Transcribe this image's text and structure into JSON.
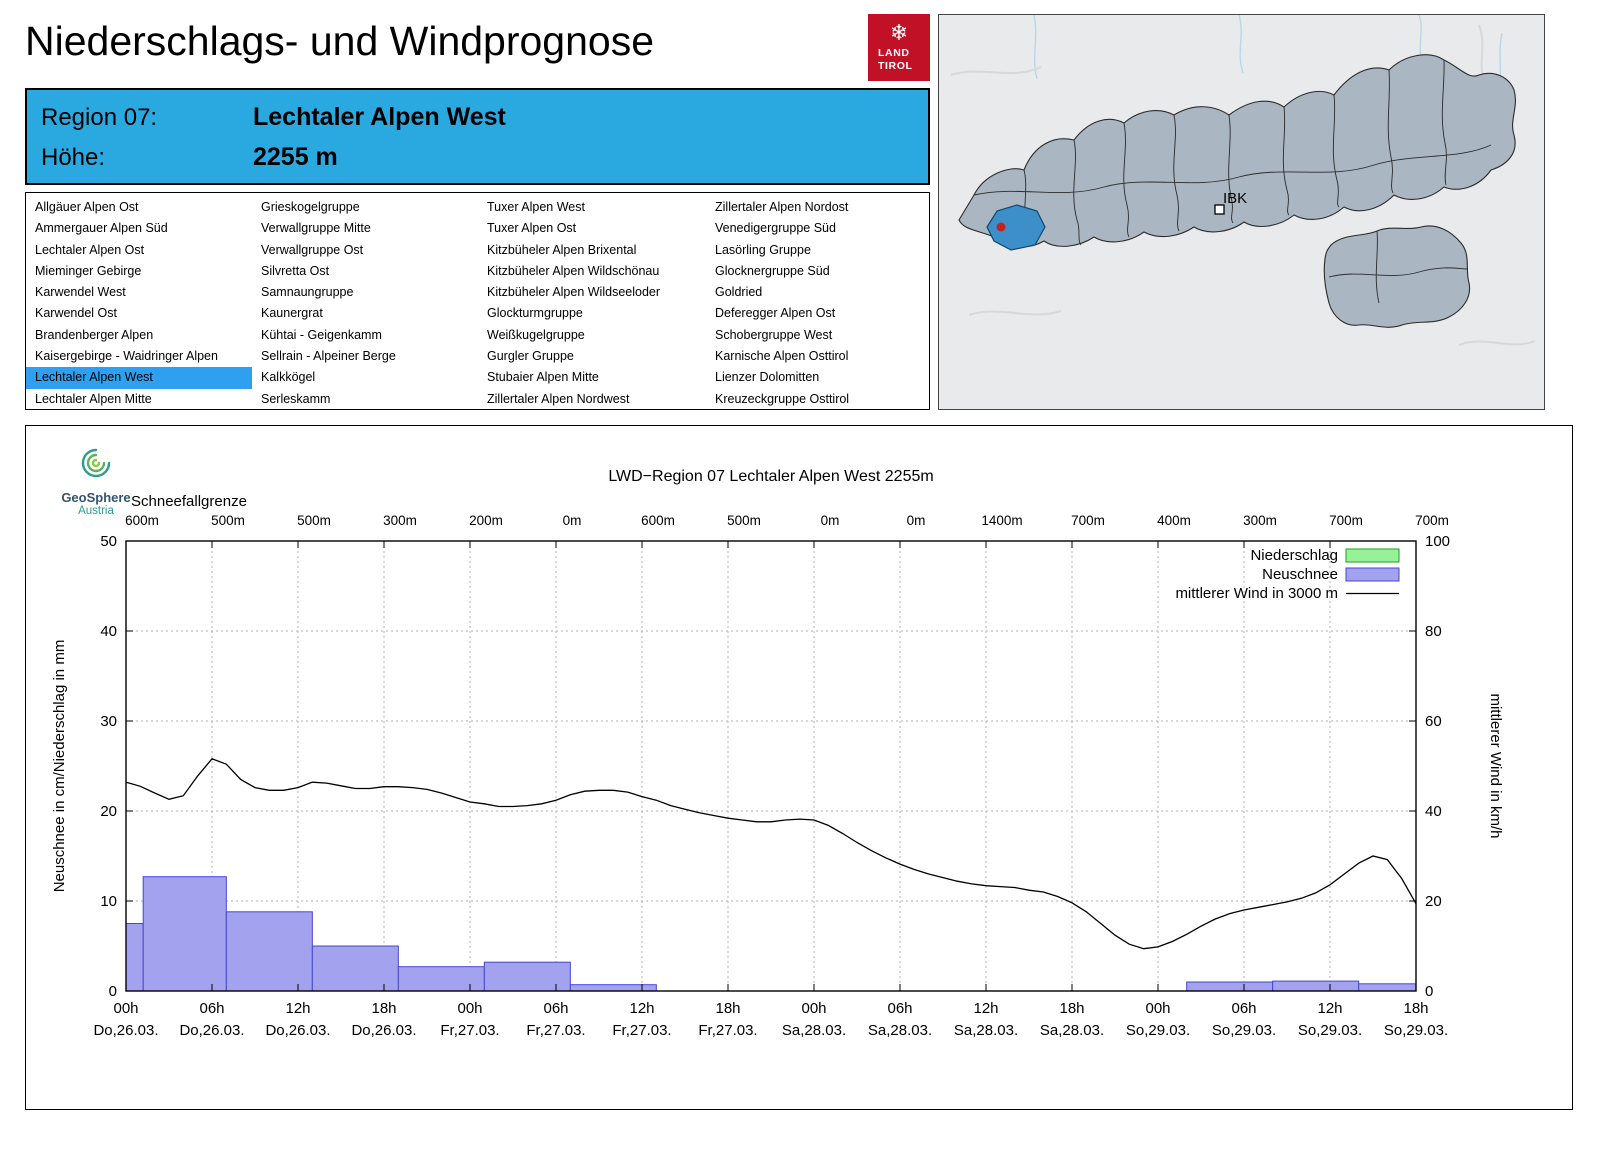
{
  "header": {
    "title": "Niederschlags- und Windprognose",
    "logo": {
      "line1": "LAND",
      "line2": "TIROL"
    }
  },
  "info_box": {
    "region_label": "Region 07:",
    "region_value": "Lechtaler Alpen West",
    "altitude_label": "Höhe:",
    "altitude_value": "2255 m",
    "bg_color": "#2aa9e1"
  },
  "region_list": {
    "selected": "Lechtaler Alpen West",
    "highlight_color": "#2f9ff0",
    "columns": [
      [
        "Allgäuer Alpen Ost",
        "Ammergauer Alpen Süd",
        "Lechtaler Alpen Ost",
        "Mieminger Gebirge",
        "Karwendel West",
        "Karwendel Ost",
        "Brandenberger Alpen",
        "Kaisergebirge - Waidringer Alpen",
        "Lechtaler Alpen West",
        "Lechtaler Alpen Mitte"
      ],
      [
        "Grieskogelgruppe",
        "Verwallgruppe Mitte",
        "Verwallgruppe Ost",
        "Silvretta Ost",
        "Samnaungruppe",
        "Kaunergrat",
        "Kühtai - Geigenkamm",
        "Sellrain - Alpeiner Berge",
        "Kalkkögel",
        "Serleskamm"
      ],
      [
        "Tuxer Alpen West",
        "Tuxer Alpen Ost",
        "Kitzbüheler Alpen Brixental",
        "Kitzbüheler Alpen Wildschönau",
        "Kitzbüheler Alpen Wildseeloder",
        "Glockturmgruppe",
        "Weißkugelgruppe",
        "Gurgler Gruppe",
        "Stubaier Alpen Mitte",
        "Zillertaler Alpen Nordwest"
      ],
      [
        "Zillertaler Alpen Nordost",
        "Venedigergruppe Süd",
        "Lasörling Gruppe",
        "Glocknergruppe Süd",
        "Goldried",
        "Deferegger Alpen Ost",
        "Schobergruppe West",
        "Karnische Alpen Osttirol",
        "Lienzer Dolomitten",
        "Kreuzeckgruppe Osttirol"
      ]
    ]
  },
  "map": {
    "ibk_label": "IBK",
    "highlight_color": "#3c8fc9",
    "marker_color": "#c22222"
  },
  "geosphere": {
    "name": "GeoSphere",
    "sub": "Austria"
  },
  "chart_data": {
    "type": "bar",
    "title": "LWD−Region 07 Lechtaler Alpen West 2255m",
    "snowline_label": "Schneefallgrenze",
    "snowline_values": [
      "600m",
      "500m",
      "500m",
      "300m",
      "200m",
      "0m",
      "600m",
      "500m",
      "0m",
      "0m",
      "1400m",
      "700m",
      "400m",
      "300m",
      "700m",
      "700m"
    ],
    "x_hours_range": [
      0,
      90
    ],
    "tick_times": [
      "00h",
      "06h",
      "12h",
      "18h",
      "00h",
      "06h",
      "12h",
      "18h",
      "00h",
      "06h",
      "12h",
      "18h",
      "00h",
      "06h",
      "12h",
      "18h"
    ],
    "tick_dates": [
      "Do,26.03.",
      "Do,26.03.",
      "Do,26.03.",
      "Do,26.03.",
      "Fr,27.03.",
      "Fr,27.03.",
      "Fr,27.03.",
      "Fr,27.03.",
      "Sa,28.03.",
      "Sa,28.03.",
      "Sa,28.03.",
      "Sa,28.03.",
      "So,29.03.",
      "So,29.03.",
      "So,29.03.",
      "So,29.03."
    ],
    "left_axis": {
      "label": "Neuschnee in cm/Niederschlag in mm",
      "min": 0,
      "max": 50,
      "ticks": [
        0,
        10,
        20,
        30,
        40,
        50
      ]
    },
    "right_axis": {
      "label": "mittlerer Wind in km/h",
      "min": 0,
      "max": 100,
      "ticks": [
        0,
        20,
        40,
        60,
        80,
        100
      ]
    },
    "legend": [
      {
        "label": "Niederschlag",
        "type": "box",
        "fill": "#98f098",
        "stroke": "#16a516"
      },
      {
        "label": "Neuschnee",
        "type": "box",
        "fill": "#a2a2ee",
        "stroke": "#4646cf"
      },
      {
        "label": "mittlerer Wind in 3000 m",
        "type": "line",
        "stroke": "#000000"
      }
    ],
    "niederschlag_bars": [],
    "neuschnee_bars": [
      {
        "from": 0,
        "to": 1.2,
        "value": 7.5
      },
      {
        "from": 1.2,
        "to": 7,
        "value": 12.7
      },
      {
        "from": 7,
        "to": 13,
        "value": 8.8
      },
      {
        "from": 13,
        "to": 19,
        "value": 5.0
      },
      {
        "from": 19,
        "to": 25,
        "value": 2.7
      },
      {
        "from": 25,
        "to": 31,
        "value": 3.2
      },
      {
        "from": 31,
        "to": 37,
        "value": 0.7
      },
      {
        "from": 74,
        "to": 80,
        "value": 1.0
      },
      {
        "from": 80,
        "to": 86,
        "value": 1.1
      },
      {
        "from": 86,
        "to": 90,
        "value": 0.8
      }
    ],
    "wind_line": [
      [
        0,
        46.4
      ],
      [
        1,
        45.5
      ],
      [
        2,
        44.0
      ],
      [
        3,
        42.6
      ],
      [
        4,
        43.4
      ],
      [
        5,
        47.8
      ],
      [
        6,
        51.6
      ],
      [
        7,
        50.4
      ],
      [
        8,
        47.0
      ],
      [
        9,
        45.2
      ],
      [
        10,
        44.6
      ],
      [
        11,
        44.6
      ],
      [
        12,
        45.2
      ],
      [
        13,
        46.4
      ],
      [
        14,
        46.2
      ],
      [
        15,
        45.6
      ],
      [
        16,
        45.0
      ],
      [
        17,
        45.0
      ],
      [
        18,
        45.4
      ],
      [
        19,
        45.4
      ],
      [
        20,
        45.2
      ],
      [
        21,
        44.8
      ],
      [
        22,
        44.0
      ],
      [
        23,
        43.0
      ],
      [
        24,
        42.0
      ],
      [
        25,
        41.6
      ],
      [
        26,
        41.0
      ],
      [
        27,
        41.0
      ],
      [
        28,
        41.2
      ],
      [
        29,
        41.6
      ],
      [
        30,
        42.4
      ],
      [
        31,
        43.6
      ],
      [
        32,
        44.4
      ],
      [
        33,
        44.6
      ],
      [
        34,
        44.6
      ],
      [
        35,
        44.2
      ],
      [
        36,
        43.2
      ],
      [
        37,
        42.4
      ],
      [
        38,
        41.2
      ],
      [
        39,
        40.4
      ],
      [
        40,
        39.6
      ],
      [
        41,
        39.0
      ],
      [
        42,
        38.4
      ],
      [
        43,
        38.0
      ],
      [
        44,
        37.6
      ],
      [
        45,
        37.6
      ],
      [
        46,
        38.0
      ],
      [
        47,
        38.2
      ],
      [
        48,
        38.0
      ],
      [
        49,
        36.8
      ],
      [
        50,
        35.0
      ],
      [
        51,
        33.0
      ],
      [
        52,
        31.2
      ],
      [
        53,
        29.6
      ],
      [
        54,
        28.2
      ],
      [
        55,
        27.0
      ],
      [
        56,
        26.0
      ],
      [
        57,
        25.2
      ],
      [
        58,
        24.4
      ],
      [
        59,
        23.8
      ],
      [
        60,
        23.4
      ],
      [
        61,
        23.2
      ],
      [
        62,
        23.0
      ],
      [
        63,
        22.4
      ],
      [
        64,
        22.0
      ],
      [
        65,
        21.0
      ],
      [
        66,
        19.6
      ],
      [
        67,
        17.6
      ],
      [
        68,
        15.0
      ],
      [
        69,
        12.4
      ],
      [
        70,
        10.4
      ],
      [
        71,
        9.4
      ],
      [
        72,
        9.8
      ],
      [
        73,
        11.0
      ],
      [
        74,
        12.6
      ],
      [
        75,
        14.4
      ],
      [
        76,
        16.0
      ],
      [
        77,
        17.2
      ],
      [
        78,
        18.0
      ],
      [
        79,
        18.6
      ],
      [
        80,
        19.2
      ],
      [
        81,
        19.8
      ],
      [
        82,
        20.6
      ],
      [
        83,
        21.8
      ],
      [
        84,
        23.6
      ],
      [
        85,
        26.0
      ],
      [
        86,
        28.4
      ],
      [
        87,
        30.0
      ],
      [
        88,
        29.2
      ],
      [
        89,
        25.0
      ],
      [
        90,
        19.4
      ]
    ]
  }
}
